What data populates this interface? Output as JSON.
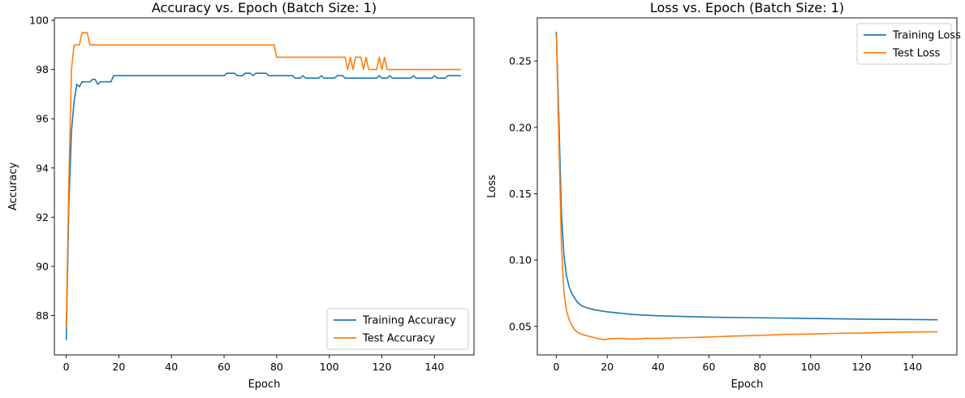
{
  "chart_data": [
    {
      "type": "line",
      "title": "Accuracy vs. Epoch (Batch Size: 1)",
      "xlabel": "Epoch",
      "ylabel": "Accuracy",
      "xlim": [
        -4.5,
        155
      ],
      "ylim": [
        86.4,
        100.1
      ],
      "xticks": [
        0,
        20,
        40,
        60,
        80,
        100,
        120,
        140
      ],
      "yticks": [
        88,
        90,
        92,
        94,
        96,
        98,
        100
      ],
      "legend": "lower-right",
      "grid": false,
      "series": [
        {
          "name": "Training Accuracy",
          "color": "#1f77b4",
          "points": [
            [
              0,
              87.0
            ],
            [
              1,
              92.5
            ],
            [
              2,
              95.5
            ],
            [
              3,
              96.7
            ],
            [
              4,
              97.4
            ],
            [
              5,
              97.3
            ],
            [
              6,
              97.5
            ],
            [
              9,
              97.5
            ],
            [
              10,
              97.6
            ],
            [
              11,
              97.6
            ],
            [
              12,
              97.4
            ],
            [
              13,
              97.5
            ],
            [
              17,
              97.5
            ],
            [
              18,
              97.75
            ],
            [
              60,
              97.75
            ],
            [
              61,
              97.85
            ],
            [
              64,
              97.85
            ],
            [
              65,
              97.75
            ],
            [
              67,
              97.75
            ],
            [
              68,
              97.85
            ],
            [
              70,
              97.85
            ],
            [
              71,
              97.75
            ],
            [
              72,
              97.85
            ],
            [
              76,
              97.85
            ],
            [
              77,
              97.75
            ],
            [
              86,
              97.75
            ],
            [
              87,
              97.65
            ],
            [
              89,
              97.65
            ],
            [
              90,
              97.75
            ],
            [
              91,
              97.65
            ],
            [
              96,
              97.65
            ],
            [
              97,
              97.75
            ],
            [
              98,
              97.65
            ],
            [
              102,
              97.65
            ],
            [
              103,
              97.75
            ],
            [
              105,
              97.75
            ],
            [
              106,
              97.65
            ],
            [
              118,
              97.65
            ],
            [
              119,
              97.75
            ],
            [
              120,
              97.65
            ],
            [
              122,
              97.65
            ],
            [
              123,
              97.75
            ],
            [
              124,
              97.65
            ],
            [
              131,
              97.65
            ],
            [
              132,
              97.75
            ],
            [
              133,
              97.65
            ],
            [
              139,
              97.65
            ],
            [
              140,
              97.75
            ],
            [
              141,
              97.65
            ],
            [
              144,
              97.65
            ],
            [
              145,
              97.75
            ],
            [
              150,
              97.75
            ]
          ]
        },
        {
          "name": "Test Accuracy",
          "color": "#ff7f0e",
          "points": [
            [
              0,
              87.5
            ],
            [
              1,
              93.5
            ],
            [
              2,
              98.0
            ],
            [
              3,
              99.0
            ],
            [
              5,
              99.0
            ],
            [
              6,
              99.5
            ],
            [
              8,
              99.5
            ],
            [
              9,
              99.0
            ],
            [
              79,
              99.0
            ],
            [
              80,
              98.5
            ],
            [
              106,
              98.5
            ],
            [
              107,
              98.0
            ],
            [
              108,
              98.5
            ],
            [
              109,
              98.0
            ],
            [
              110,
              98.5
            ],
            [
              112,
              98.5
            ],
            [
              113,
              98.0
            ],
            [
              114,
              98.5
            ],
            [
              115,
              98.0
            ],
            [
              118,
              98.0
            ],
            [
              119,
              98.5
            ],
            [
              120,
              98.0
            ],
            [
              121,
              98.5
            ],
            [
              122,
              98.0
            ],
            [
              150,
              98.0
            ]
          ]
        }
      ]
    },
    {
      "type": "line",
      "title": "Loss vs. Epoch (Batch Size: 1)",
      "xlabel": "Epoch",
      "ylabel": "Loss",
      "xlim": [
        -7.5,
        157.5
      ],
      "ylim": [
        0.0285,
        0.2825
      ],
      "xticks": [
        0,
        20,
        40,
        60,
        80,
        100,
        120,
        140
      ],
      "yticks": [
        0.05,
        0.1,
        0.15,
        0.2,
        0.25
      ],
      "legend": "upper-right",
      "grid": false,
      "series": [
        {
          "name": "Training Loss",
          "color": "#1f77b4",
          "points": [
            [
              0,
              0.272
            ],
            [
              1,
              0.205
            ],
            [
              2,
              0.135
            ],
            [
              3,
              0.103
            ],
            [
              4,
              0.088
            ],
            [
              5,
              0.08
            ],
            [
              6,
              0.075
            ],
            [
              7,
              0.072
            ],
            [
              8,
              0.069
            ],
            [
              9,
              0.067
            ],
            [
              10,
              0.0655
            ],
            [
              12,
              0.064
            ],
            [
              15,
              0.0625
            ],
            [
              20,
              0.061
            ],
            [
              30,
              0.059
            ],
            [
              40,
              0.058
            ],
            [
              60,
              0.057
            ],
            [
              80,
              0.0565
            ],
            [
              100,
              0.056
            ],
            [
              120,
              0.0555
            ],
            [
              150,
              0.055
            ]
          ]
        },
        {
          "name": "Test Loss",
          "color": "#ff7f0e",
          "points": [
            [
              0,
              0.27
            ],
            [
              1,
              0.19
            ],
            [
              2,
              0.11
            ],
            [
              3,
              0.075
            ],
            [
              4,
              0.062
            ],
            [
              5,
              0.055
            ],
            [
              6,
              0.051
            ],
            [
              7,
              0.048
            ],
            [
              8,
              0.046
            ],
            [
              10,
              0.044
            ],
            [
              12,
              0.043
            ],
            [
              14,
              0.042
            ],
            [
              16,
              0.041
            ],
            [
              19,
              0.04
            ],
            [
              21,
              0.0408
            ],
            [
              25,
              0.041
            ],
            [
              30,
              0.0405
            ],
            [
              35,
              0.041
            ],
            [
              40,
              0.041
            ],
            [
              50,
              0.0415
            ],
            [
              60,
              0.042
            ],
            [
              70,
              0.0428
            ],
            [
              80,
              0.0432
            ],
            [
              90,
              0.044
            ],
            [
              100,
              0.0442
            ],
            [
              110,
              0.0448
            ],
            [
              120,
              0.045
            ],
            [
              130,
              0.0455
            ],
            [
              140,
              0.0458
            ],
            [
              150,
              0.046
            ]
          ]
        }
      ]
    }
  ]
}
